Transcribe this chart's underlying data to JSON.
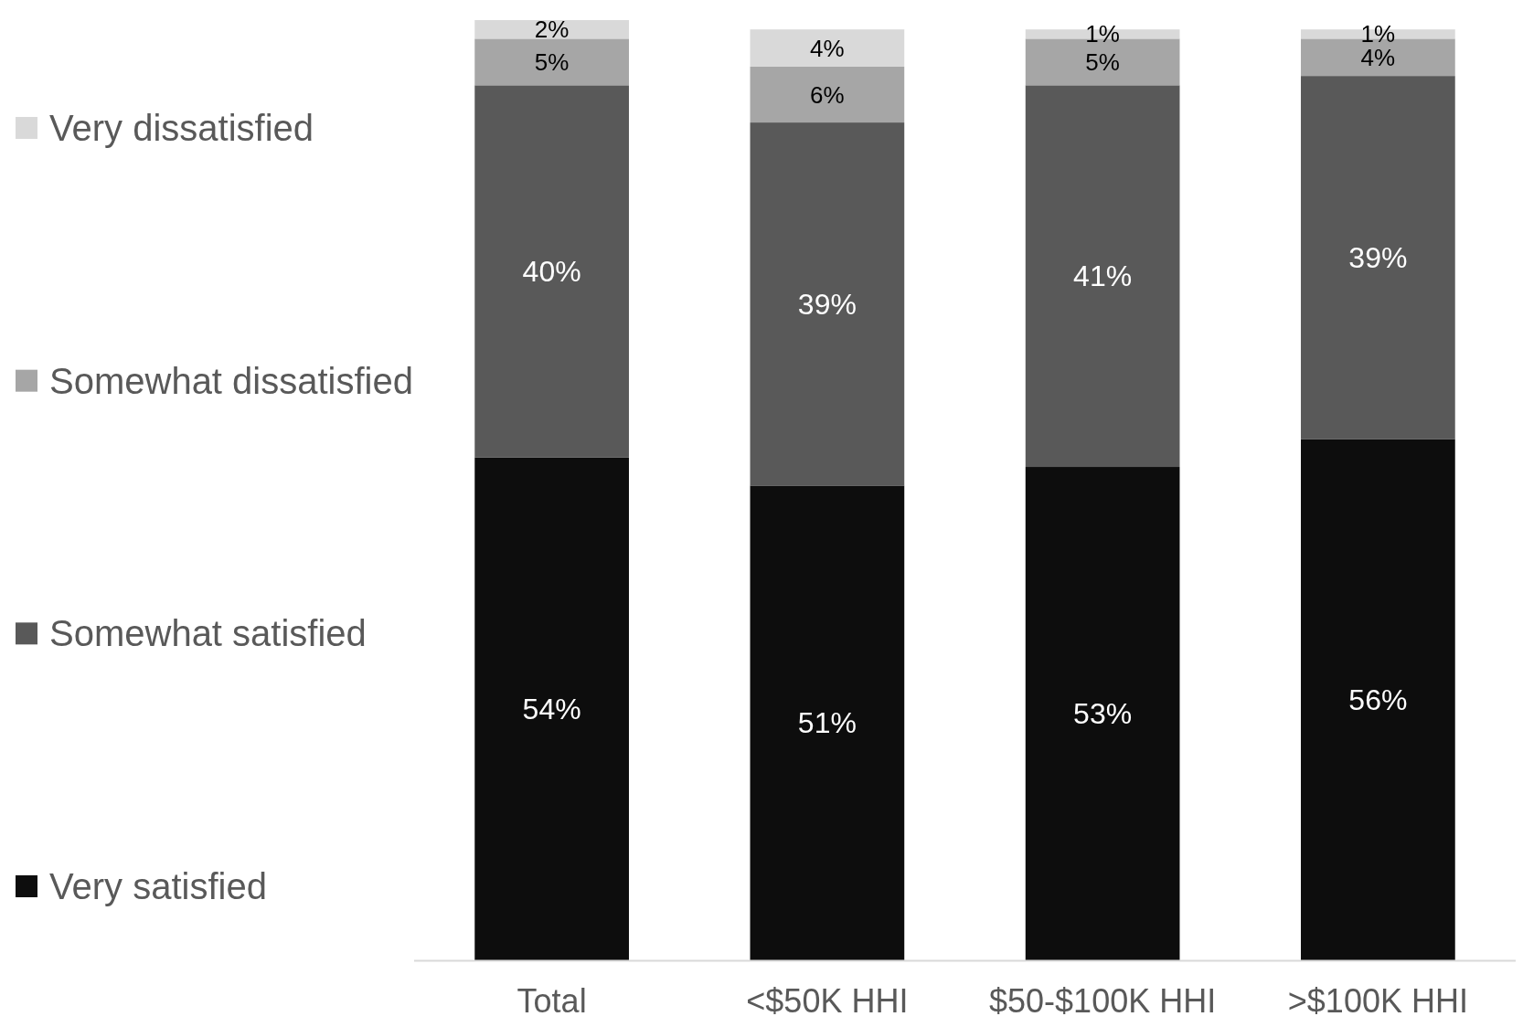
{
  "chart_data": {
    "type": "bar",
    "stacked": true,
    "legend": "left",
    "tick_labels": "x",
    "categories": [
      "Total",
      "<$50K HHI",
      "$50-$100K HHI",
      ">$100K HHI"
    ],
    "series": [
      {
        "name": "Very satisfied",
        "color": "#0d0d0d",
        "values": [
          54,
          51,
          53,
          56
        ],
        "value_labels": [
          "54%",
          "51%",
          "53%",
          "56%"
        ]
      },
      {
        "name": "Somewhat satisfied",
        "color": "#595959",
        "values": [
          40,
          39,
          41,
          39
        ],
        "value_labels": [
          "40%",
          "39%",
          "41%",
          "39%"
        ]
      },
      {
        "name": "Somewhat dissatisfied",
        "color": "#a6a6a6",
        "values": [
          5,
          6,
          5,
          4
        ],
        "value_labels": [
          "5%",
          "6%",
          "5%",
          "4%"
        ]
      },
      {
        "name": "Very dissatisfied",
        "color": "#d9d9d9",
        "values": [
          2,
          4,
          1,
          1
        ],
        "value_labels": [
          "2%",
          "4%",
          "1%",
          "1%"
        ]
      }
    ]
  }
}
